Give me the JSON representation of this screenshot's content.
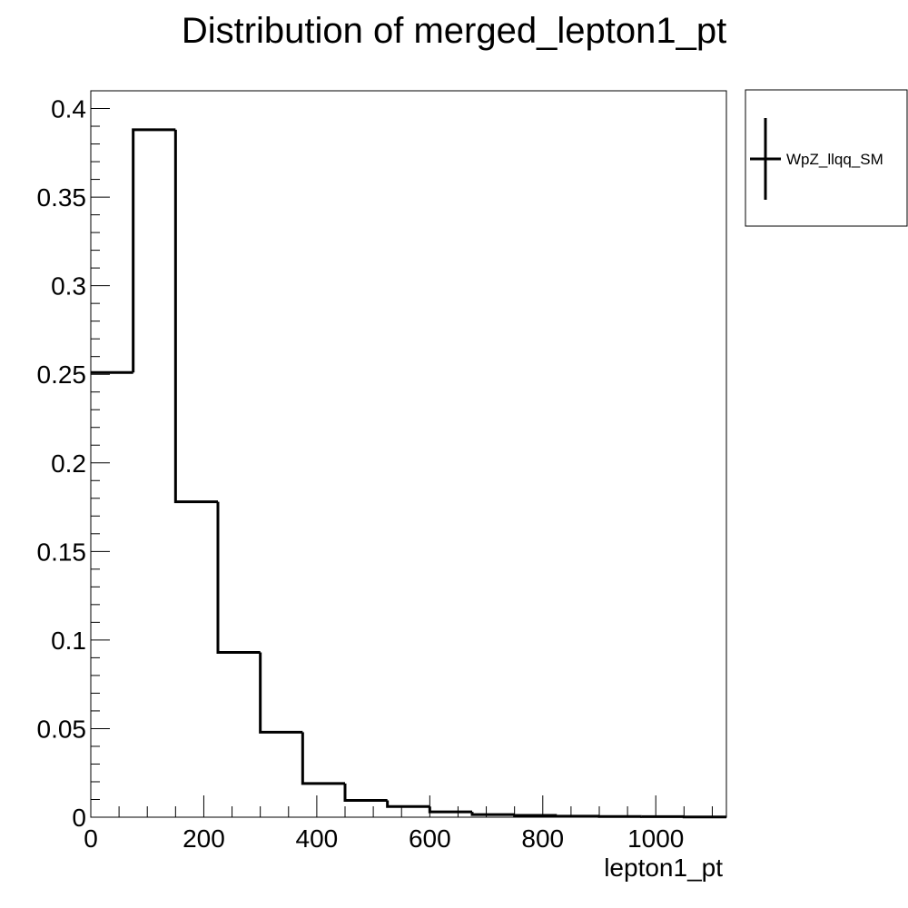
{
  "chart_data": {
    "type": "bar",
    "title": "Distribution of merged_lepton1_pt",
    "xlabel": "lepton1_pt",
    "ylabel": "",
    "xlim": [
      0,
      1125
    ],
    "ylim": [
      0,
      0.41
    ],
    "bin_edges": [
      0,
      75,
      150,
      225,
      300,
      375,
      450,
      525,
      600,
      675,
      750,
      825,
      900,
      975,
      1050,
      1125
    ],
    "series": [
      {
        "name": "WpZ_llqq_SM",
        "values": [
          0.251,
          0.388,
          0.178,
          0.093,
          0.048,
          0.019,
          0.0095,
          0.006,
          0.003,
          0.0015,
          0.001,
          0.0006,
          0.0004,
          0.0003,
          0.0001
        ]
      }
    ],
    "x_ticks": [
      {
        "value": 0,
        "label": "0"
      },
      {
        "value": 200,
        "label": "200"
      },
      {
        "value": 400,
        "label": "400"
      },
      {
        "value": 600,
        "label": "600"
      },
      {
        "value": 800,
        "label": "800"
      },
      {
        "value": 1000,
        "label": "1000"
      }
    ],
    "y_ticks": [
      {
        "value": 0,
        "label": "0"
      },
      {
        "value": 0.05,
        "label": "0.05"
      },
      {
        "value": 0.1,
        "label": "0.1"
      },
      {
        "value": 0.15,
        "label": "0.15"
      },
      {
        "value": 0.2,
        "label": "0.2"
      },
      {
        "value": 0.25,
        "label": "0.25"
      },
      {
        "value": 0.3,
        "label": "0.3"
      },
      {
        "value": 0.35,
        "label": "0.35"
      },
      {
        "value": 0.4,
        "label": "0.4"
      }
    ],
    "grid": false,
    "legend_position": "top-right, outside plot area"
  }
}
